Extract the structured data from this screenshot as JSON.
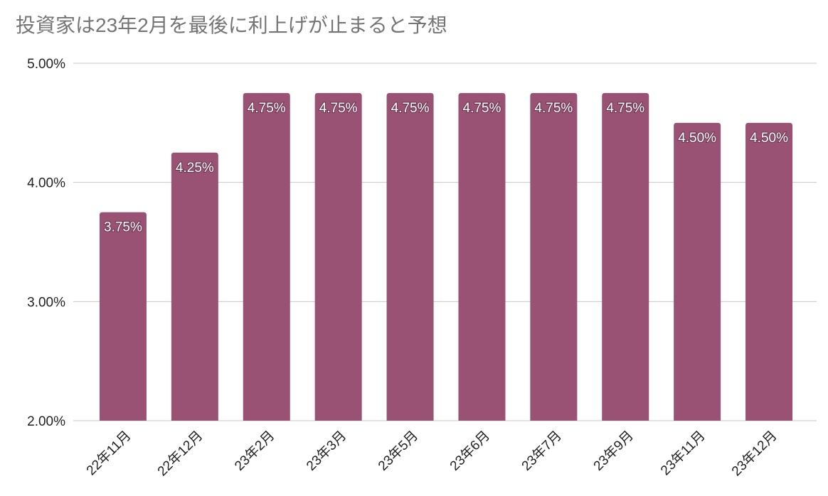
{
  "chart_data": {
    "type": "bar",
    "title": "投資家は23年2月を最後に利上げが止まると予想",
    "categories": [
      "22年11月",
      "22年12月",
      "23年2月",
      "23年3月",
      "23年5月",
      "23年6月",
      "23年7月",
      "23年9月",
      "23年11月",
      "23年12月"
    ],
    "values": [
      3.75,
      4.25,
      4.75,
      4.75,
      4.75,
      4.75,
      4.75,
      4.75,
      4.5,
      4.5
    ],
    "value_labels": [
      "3.75%",
      "4.25%",
      "4.75%",
      "4.75%",
      "4.75%",
      "4.75%",
      "4.75%",
      "4.75%",
      "4.50%",
      "4.50%"
    ],
    "color": "#9a5274",
    "ylim": [
      2,
      5
    ],
    "yticks": [
      {
        "value": 2,
        "label": "2.00%"
      },
      {
        "value": 3,
        "label": "3.00%"
      },
      {
        "value": 4,
        "label": "4.00%"
      },
      {
        "value": 5,
        "label": "5.00%"
      }
    ],
    "grid": true
  }
}
